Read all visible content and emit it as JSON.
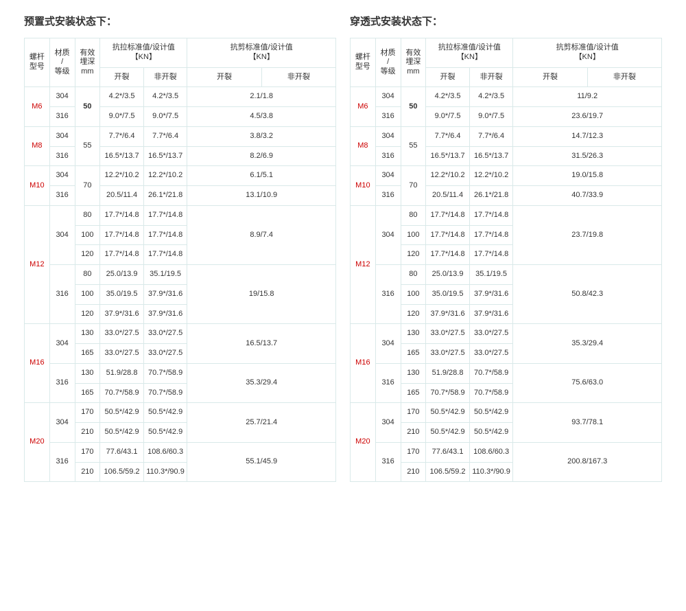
{
  "headers": {
    "col_model": "螺杆\n型号",
    "col_material": "材质\n/\n等级",
    "col_depth": "有效\n埋深\nmm",
    "col_tensile": "抗拉标准值/设计值\n【KN】",
    "col_shear": "抗剪标准值/设计值\n【KN】",
    "sub_crack": "开裂",
    "sub_nocrack": "非开裂"
  },
  "left": {
    "title": "预置式安装状态下：",
    "groups": [
      {
        "model": "M6",
        "depth_bold": true,
        "mats": [
          {
            "mat": "304",
            "rows": [
              {
                "d": "50",
                "t_c": "4.2*/3.5",
                "t_n": "4.2*/3.5"
              }
            ],
            "shear": "2.1/1.8"
          },
          {
            "mat": "316",
            "rows": [
              {
                "d": "",
                "t_c": "9.0*/7.5",
                "t_n": "9.0*/7.5"
              }
            ],
            "shear": "4.5/3.8"
          }
        ]
      },
      {
        "model": "M8",
        "depth_bold": false,
        "mats": [
          {
            "mat": "304",
            "rows": [
              {
                "d": "55",
                "t_c": "7.7*/6.4",
                "t_n": "7.7*/6.4"
              }
            ],
            "shear": "3.8/3.2"
          },
          {
            "mat": "316",
            "rows": [
              {
                "d": "",
                "t_c": "16.5*/13.7",
                "t_n": "16.5*/13.7"
              }
            ],
            "shear": "8.2/6.9"
          }
        ]
      },
      {
        "model": "M10",
        "depth_bold": false,
        "mats": [
          {
            "mat": "304",
            "rows": [
              {
                "d": "70",
                "t_c": "12.2*/10.2",
                "t_n": "12.2*/10.2"
              }
            ],
            "shear": "6.1/5.1"
          },
          {
            "mat": "316",
            "rows": [
              {
                "d": "",
                "t_c": "20.5/11.4",
                "t_n": "26.1*/21.8"
              }
            ],
            "shear": "13.1/10.9"
          }
        ]
      },
      {
        "model": "M12",
        "depth_bold": false,
        "mats": [
          {
            "mat": "304",
            "rows": [
              {
                "d": "80",
                "t_c": "17.7*/14.8",
                "t_n": "17.7*/14.8"
              },
              {
                "d": "100",
                "t_c": "17.7*/14.8",
                "t_n": "17.7*/14.8"
              },
              {
                "d": "120",
                "t_c": "17.7*/14.8",
                "t_n": "17.7*/14.8"
              }
            ],
            "shear": "8.9/7.4"
          },
          {
            "mat": "316",
            "rows": [
              {
                "d": "80",
                "t_c": "25.0/13.9",
                "t_n": "35.1/19.5"
              },
              {
                "d": "100",
                "t_c": "35.0/19.5",
                "t_n": "37.9*/31.6"
              },
              {
                "d": "120",
                "t_c": "37.9*/31.6",
                "t_n": "37.9*/31.6"
              }
            ],
            "shear": "19/15.8"
          }
        ]
      },
      {
        "model": "M16",
        "depth_bold": false,
        "mats": [
          {
            "mat": "304",
            "rows": [
              {
                "d": "130",
                "t_c": "33.0*/27.5",
                "t_n": "33.0*/27.5"
              },
              {
                "d": "165",
                "t_c": "33.0*/27.5",
                "t_n": "33.0*/27.5"
              }
            ],
            "shear": "16.5/13.7"
          },
          {
            "mat": "316",
            "rows": [
              {
                "d": "130",
                "t_c": "51.9/28.8",
                "t_n": "70.7*/58.9"
              },
              {
                "d": "165",
                "t_c": "70.7*/58.9",
                "t_n": "70.7*/58.9"
              }
            ],
            "shear": "35.3/29.4"
          }
        ]
      },
      {
        "model": "M20",
        "depth_bold": false,
        "mats": [
          {
            "mat": "304",
            "rows": [
              {
                "d": "170",
                "t_c": "50.5*/42.9",
                "t_n": "50.5*/42.9"
              },
              {
                "d": "210",
                "t_c": "50.5*/42.9",
                "t_n": "50.5*/42.9"
              }
            ],
            "shear": "25.7/21.4"
          },
          {
            "mat": "316",
            "rows": [
              {
                "d": "170",
                "t_c": "77.6/43.1",
                "t_n": "108.6/60.3"
              },
              {
                "d": "210",
                "t_c": "106.5/59.2",
                "t_n": "110.3*/90.9"
              }
            ],
            "shear": "55.1/45.9"
          }
        ]
      }
    ]
  },
  "right": {
    "title": "穿透式安装状态下：",
    "groups": [
      {
        "model": "M6",
        "depth_bold": true,
        "mats": [
          {
            "mat": "304",
            "rows": [
              {
                "d": "50",
                "t_c": "4.2*/3.5",
                "t_n": "4.2*/3.5"
              }
            ],
            "shear": "11/9.2"
          },
          {
            "mat": "316",
            "rows": [
              {
                "d": "",
                "t_c": "9.0*/7.5",
                "t_n": "9.0*/7.5"
              }
            ],
            "shear": "23.6/19.7"
          }
        ]
      },
      {
        "model": "M8",
        "depth_bold": false,
        "mats": [
          {
            "mat": "304",
            "rows": [
              {
                "d": "55",
                "t_c": "7.7*/6.4",
                "t_n": "7.7*/6.4"
              }
            ],
            "shear": "14.7/12.3"
          },
          {
            "mat": "316",
            "rows": [
              {
                "d": "",
                "t_c": "16.5*/13.7",
                "t_n": "16.5*/13.7"
              }
            ],
            "shear": "31.5/26.3"
          }
        ]
      },
      {
        "model": "M10",
        "depth_bold": false,
        "mats": [
          {
            "mat": "304",
            "rows": [
              {
                "d": "70",
                "t_c": "12.2*/10.2",
                "t_n": "12.2*/10.2"
              }
            ],
            "shear": "19.0/15.8"
          },
          {
            "mat": "316",
            "rows": [
              {
                "d": "",
                "t_c": "20.5/11.4",
                "t_n": "26.1*/21.8"
              }
            ],
            "shear": "40.7/33.9"
          }
        ]
      },
      {
        "model": "M12",
        "depth_bold": false,
        "mats": [
          {
            "mat": "304",
            "rows": [
              {
                "d": "80",
                "t_c": "17.7*/14.8",
                "t_n": "17.7*/14.8"
              },
              {
                "d": "100",
                "t_c": "17.7*/14.8",
                "t_n": "17.7*/14.8"
              },
              {
                "d": "120",
                "t_c": "17.7*/14.8",
                "t_n": "17.7*/14.8"
              }
            ],
            "shear": "23.7/19.8"
          },
          {
            "mat": "316",
            "rows": [
              {
                "d": "80",
                "t_c": "25.0/13.9",
                "t_n": "35.1/19.5"
              },
              {
                "d": "100",
                "t_c": "35.0/19.5",
                "t_n": "37.9*/31.6"
              },
              {
                "d": "120",
                "t_c": "37.9*/31.6",
                "t_n": "37.9*/31.6"
              }
            ],
            "shear": "50.8/42.3"
          }
        ]
      },
      {
        "model": "M16",
        "depth_bold": false,
        "mats": [
          {
            "mat": "304",
            "rows": [
              {
                "d": "130",
                "t_c": "33.0*/27.5",
                "t_n": "33.0*/27.5"
              },
              {
                "d": "165",
                "t_c": "33.0*/27.5",
                "t_n": "33.0*/27.5"
              }
            ],
            "shear": "35.3/29.4"
          },
          {
            "mat": "316",
            "rows": [
              {
                "d": "130",
                "t_c": "51.9/28.8",
                "t_n": "70.7*/58.9"
              },
              {
                "d": "165",
                "t_c": "70.7*/58.9",
                "t_n": "70.7*/58.9"
              }
            ],
            "shear": "75.6/63.0"
          }
        ]
      },
      {
        "model": "M20",
        "depth_bold": false,
        "mats": [
          {
            "mat": "304",
            "rows": [
              {
                "d": "170",
                "t_c": "50.5*/42.9",
                "t_n": "50.5*/42.9"
              },
              {
                "d": "210",
                "t_c": "50.5*/42.9",
                "t_n": "50.5*/42.9"
              }
            ],
            "shear": "93.7/78.1"
          },
          {
            "mat": "316",
            "rows": [
              {
                "d": "170",
                "t_c": "77.6/43.1",
                "t_n": "108.6/60.3"
              },
              {
                "d": "210",
                "t_c": "106.5/59.2",
                "t_n": "110.3*/90.9"
              }
            ],
            "shear": "200.8/167.3"
          }
        ]
      }
    ]
  },
  "colwidths_pct": [
    8,
    8,
    8,
    14,
    14,
    24,
    24
  ]
}
